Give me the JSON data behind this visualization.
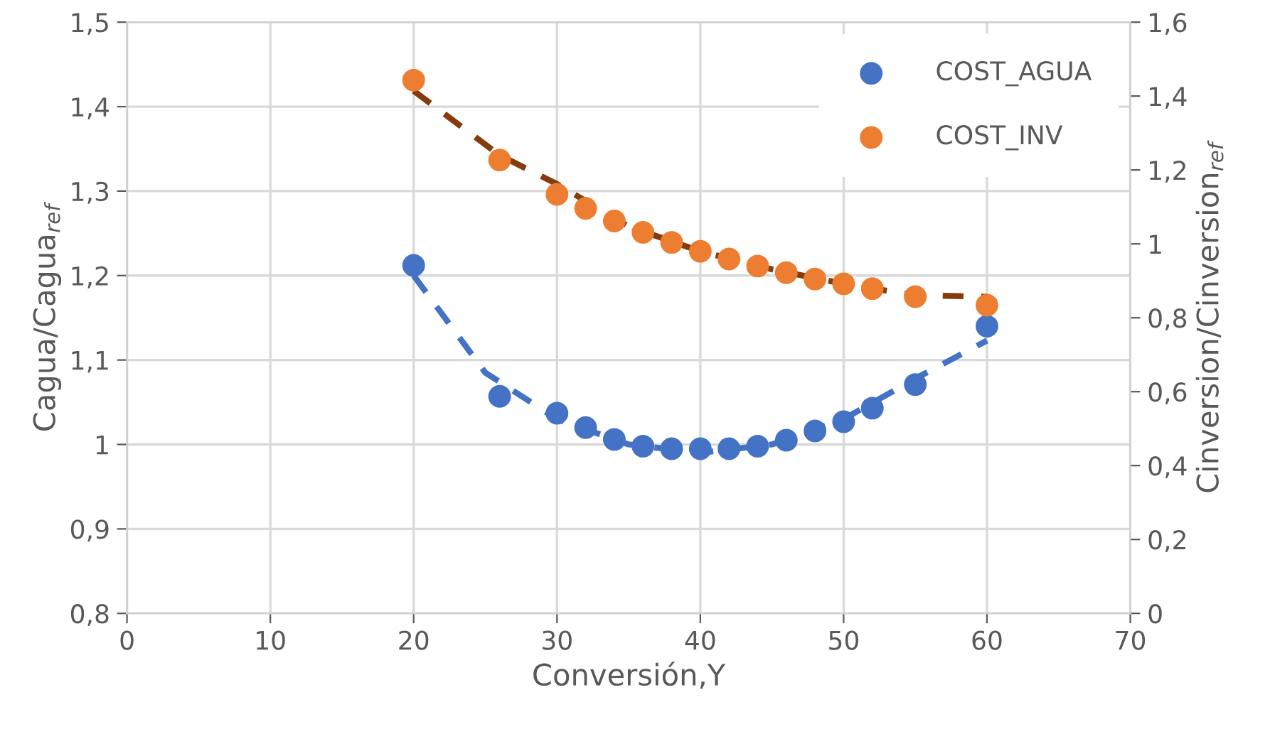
{
  "chart_data": {
    "type": "scatter",
    "xlabel": "Conversión,Y",
    "ylabel": "Cagua/Cagua$_{ref}$",
    "y2label": "Cinversion/Cinversion$_{ref}$",
    "xlim": [
      0,
      70
    ],
    "xticks": [
      0,
      10,
      20,
      30,
      40,
      50,
      60,
      70
    ],
    "ylim": [
      0.8,
      1.5
    ],
    "yticks": [
      {
        "value": 0.8,
        "label": "0,8"
      },
      {
        "value": 0.9,
        "label": "0,9"
      },
      1,
      {
        "value": 1.1,
        "label": "1,1"
      },
      {
        "value": 1.2,
        "label": "1,2"
      },
      {
        "value": 1.3,
        "label": "1,3"
      },
      {
        "value": 1.4,
        "label": "1,4"
      },
      {
        "value": 1.5,
        "label": "1,5"
      }
    ],
    "y2lim": [
      0,
      1.6
    ],
    "y2ticks": [
      0,
      {
        "value": 0.2,
        "label": "0,2"
      },
      {
        "value": 0.4,
        "label": "0,4"
      },
      {
        "value": 0.6,
        "label": "0,6"
      },
      {
        "value": 0.8,
        "label": "0,8"
      },
      1,
      {
        "value": 1.2,
        "label": "1,2"
      },
      {
        "value": 1.4,
        "label": "1,4"
      },
      {
        "value": 1.6,
        "label": "1,6"
      }
    ],
    "grid": true,
    "legend": "top right",
    "marker": "circle",
    "series": [
      {
        "type": "line",
        "line_style": "dashed",
        "marker": "none",
        "color": "#4472c4",
        "x": [
          20,
          25,
          30,
          35,
          40,
          45,
          50,
          55,
          60
        ],
        "values": [
          1.2,
          1.085,
          1.03,
          1.0,
          0.99,
          1.0,
          1.03,
          1.078,
          1.123
        ]
      },
      {
        "type": "line",
        "line_style": "dashed",
        "marker": "none",
        "color": "#843c0c",
        "axis": "y2",
        "x": [
          20,
          26,
          30,
          35,
          40,
          45,
          50,
          55,
          60
        ],
        "values": [
          1.414,
          1.24,
          1.162,
          1.047,
          0.98,
          0.931,
          0.892,
          0.861,
          0.857
        ]
      },
      {
        "name": "COST_AGUA",
        "color": "#4472c4",
        "x": [
          20,
          26,
          30,
          32,
          34,
          36,
          38,
          40,
          42,
          44,
          46,
          48,
          50,
          52,
          55,
          60
        ],
        "values": [
          1.212,
          1.057,
          1.037,
          1.02,
          1.006,
          0.998,
          0.995,
          0.995,
          0.995,
          0.998,
          1.005,
          1.016,
          1.027,
          1.043,
          1.071,
          1.14
        ]
      },
      {
        "name": "COST_INV",
        "color": "#ed7d31",
        "axis": "y2",
        "x": [
          20,
          26,
          30,
          32,
          34,
          36,
          38,
          40,
          42,
          44,
          46,
          48,
          50,
          52,
          55,
          60
        ],
        "values": [
          1.443,
          1.227,
          1.134,
          1.096,
          1.062,
          1.031,
          1.004,
          0.98,
          0.959,
          0.94,
          0.922,
          0.905,
          0.892,
          0.879,
          0.857,
          0.834
        ]
      }
    ]
  }
}
